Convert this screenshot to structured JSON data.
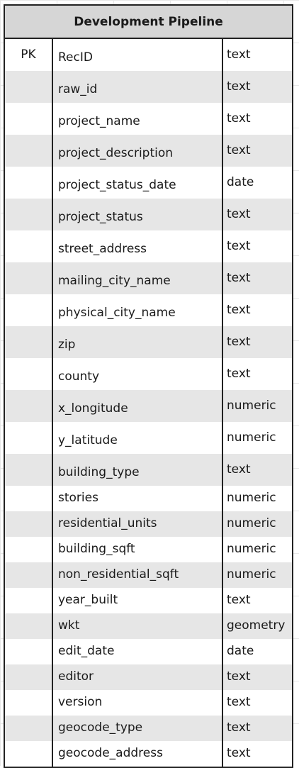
{
  "table": {
    "title": "Development Pipeline",
    "rows": [
      {
        "key": "PK",
        "name": "RecID",
        "type": "text"
      },
      {
        "key": "",
        "name": "raw_id",
        "type": "text"
      },
      {
        "key": "",
        "name": "project_name",
        "type": "text"
      },
      {
        "key": "",
        "name": "project_description",
        "type": "text"
      },
      {
        "key": "",
        "name": "project_status_date",
        "type": "date"
      },
      {
        "key": "",
        "name": "project_status",
        "type": "text"
      },
      {
        "key": "",
        "name": "street_address",
        "type": "text"
      },
      {
        "key": "",
        "name": "mailing_city_name",
        "type": "text"
      },
      {
        "key": "",
        "name": "physical_city_name",
        "type": "text"
      },
      {
        "key": "",
        "name": "zip",
        "type": "text"
      },
      {
        "key": "",
        "name": "county",
        "type": "text"
      },
      {
        "key": "",
        "name": "x_longitude",
        "type": "numeric"
      },
      {
        "key": "",
        "name": "y_latitude",
        "type": "numeric"
      },
      {
        "key": "",
        "name": "building_type",
        "type": "text"
      },
      {
        "key": "",
        "name": "stories",
        "type": "numeric"
      },
      {
        "key": "",
        "name": "residential_units",
        "type": "numeric"
      },
      {
        "key": "",
        "name": "building_sqft",
        "type": "numeric"
      },
      {
        "key": "",
        "name": "non_residential_sqft",
        "type": "numeric"
      },
      {
        "key": "",
        "name": "year_built",
        "type": "text"
      },
      {
        "key": "",
        "name": "wkt",
        "type": "geometry"
      },
      {
        "key": "",
        "name": "edit_date",
        "type": "date"
      },
      {
        "key": "",
        "name": "editor",
        "type": "text"
      },
      {
        "key": "",
        "name": "version",
        "type": "text"
      },
      {
        "key": "",
        "name": "geocode_type",
        "type": "text"
      },
      {
        "key": "",
        "name": "geocode_address",
        "type": "text"
      }
    ]
  }
}
